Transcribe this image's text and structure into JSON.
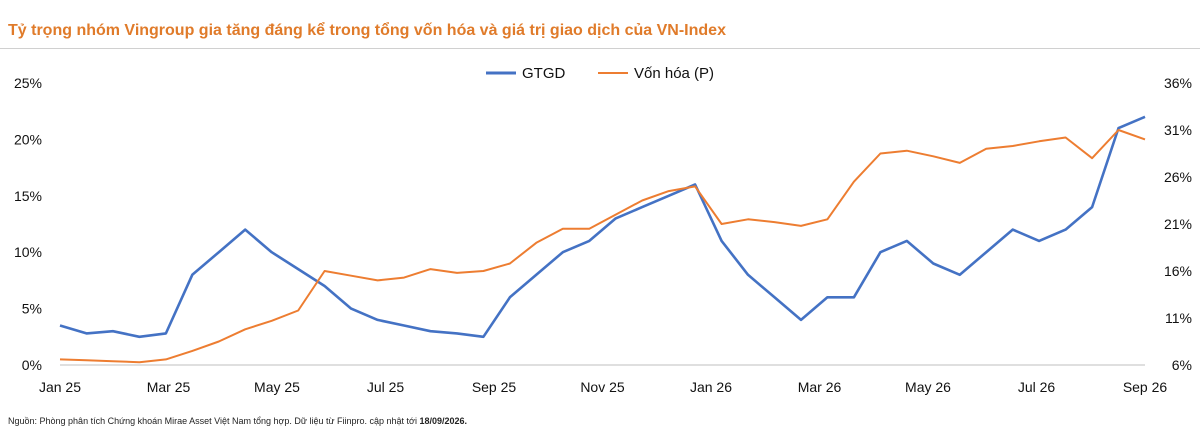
{
  "header": {
    "title": "Tỷ trọng nhóm Vingroup gia tăng đáng kể trong tổng vốn hóa và giá trị giao dịch của VN-Index"
  },
  "footer": {
    "source_prefix": "Nguồn: Phòng phân tích Chứng khoán Mirae Asset Việt Nam tổng hợp. Dữ liệu từ Fiinpro. cập nhật tới ",
    "source_date": "18/09/2026."
  },
  "chart_data": {
    "type": "line",
    "title": "",
    "xlabel": "",
    "ylabel": "",
    "x_ticks": [
      "Jan 25",
      "Mar 25",
      "May 25",
      "Jul 25",
      "Sep 25",
      "Nov 25",
      "Jan 26",
      "Mar 26",
      "May 26",
      "Jul 26",
      "Sep 26"
    ],
    "y_left": {
      "ticks": [
        "0%",
        "5%",
        "10%",
        "15%",
        "20%",
        "25%"
      ],
      "range": [
        0,
        25
      ],
      "unit": "%"
    },
    "y_right": {
      "ticks": [
        "6%",
        "11%",
        "16%",
        "21%",
        "26%",
        "31%",
        "36%"
      ],
      "range": [
        6,
        36
      ],
      "unit": "%"
    },
    "legend_position": "top-center",
    "grid": false,
    "series": [
      {
        "name": "GTGD",
        "axis": "left",
        "color": "#4472C4",
        "points": [
          [
            "Jan 25",
            3.5
          ],
          [
            "Jan 25 (mid)",
            2.8
          ],
          [
            "Feb 25",
            3.0
          ],
          [
            "Feb 25 (mid)",
            2.5
          ],
          [
            "Mar 25",
            2.8
          ],
          [
            "Mar 25 (mid)",
            8.0
          ],
          [
            "Apr 25",
            10.0
          ],
          [
            "Apr 25 (mid)",
            12.0
          ],
          [
            "May 25",
            10.0
          ],
          [
            "May 25 (mid)",
            8.5
          ],
          [
            "Jun 25",
            7.0
          ],
          [
            "Jun 25 (mid)",
            5.0
          ],
          [
            "Jul 25",
            4.0
          ],
          [
            "Jul 25 (mid)",
            3.5
          ],
          [
            "Aug 25",
            3.0
          ],
          [
            "Aug 25 (mid)",
            2.8
          ],
          [
            "Sep 25",
            2.5
          ],
          [
            "Sep 25 (mid)",
            6.0
          ],
          [
            "Oct 25",
            8.0
          ],
          [
            "Oct 25 (mid)",
            10.0
          ],
          [
            "Nov 25",
            11.0
          ],
          [
            "Nov 25 (mid)",
            13.0
          ],
          [
            "Dec 25",
            14.0
          ],
          [
            "Dec 25 (mid)",
            15.0
          ],
          [
            "Jan 26",
            16.0
          ],
          [
            "Jan 26 (mid)",
            11.0
          ],
          [
            "Feb 26",
            8.0
          ],
          [
            "Feb 26 (mid)",
            6.0
          ],
          [
            "Mar 26",
            4.0
          ],
          [
            "Mar 26 (mid)",
            6.0
          ],
          [
            "Apr 26",
            6.0
          ],
          [
            "Apr 26 (mid)",
            10.0
          ],
          [
            "May 26",
            11.0
          ],
          [
            "May 26 (mid)",
            9.0
          ],
          [
            "Jun 26",
            8.0
          ],
          [
            "Jun 26 (mid)",
            10.0
          ],
          [
            "Jul 26",
            12.0
          ],
          [
            "Jul 26 (mid)",
            11.0
          ],
          [
            "Aug 26",
            12.0
          ],
          [
            "Aug 26 (mid)",
            14.0
          ],
          [
            "Sep 26",
            21.0
          ],
          [
            "Sep 26 (end)",
            22.0
          ]
        ]
      },
      {
        "name": "Vốn hóa (P)",
        "axis": "right",
        "color": "#ED7D31",
        "points": [
          [
            "Jan 25",
            6.6
          ],
          [
            "Jan 25 (mid)",
            6.5
          ],
          [
            "Feb 25",
            6.4
          ],
          [
            "Feb 25 (mid)",
            6.3
          ],
          [
            "Mar 25",
            6.6
          ],
          [
            "Mar 25 (mid)",
            7.5
          ],
          [
            "Apr 25",
            8.5
          ],
          [
            "Apr 25 (mid)",
            9.8
          ],
          [
            "May 25",
            10.7
          ],
          [
            "May 25 (mid)",
            11.8
          ],
          [
            "Jun 25",
            16.0
          ],
          [
            "Jun 25 (mid)",
            15.5
          ],
          [
            "Jul 25",
            15.0
          ],
          [
            "Jul 25 (mid)",
            15.3
          ],
          [
            "Aug 25",
            16.2
          ],
          [
            "Aug 25 (mid)",
            15.8
          ],
          [
            "Sep 25",
            16.0
          ],
          [
            "Sep 25 (mid)",
            16.8
          ],
          [
            "Oct 25",
            19.0
          ],
          [
            "Oct 25 (mid)",
            20.5
          ],
          [
            "Nov 25",
            20.5
          ],
          [
            "Nov 25 (mid)",
            22.0
          ],
          [
            "Dec 25",
            23.5
          ],
          [
            "Dec 25 (mid)",
            24.5
          ],
          [
            "Jan 26",
            25.0
          ],
          [
            "Jan 26 (mid)",
            21.0
          ],
          [
            "Feb 26",
            21.5
          ],
          [
            "Feb 26 (mid)",
            21.2
          ],
          [
            "Mar 26",
            20.8
          ],
          [
            "Mar 26 (mid)",
            21.5
          ],
          [
            "Apr 26",
            25.5
          ],
          [
            "Apr 26 (mid)",
            28.5
          ],
          [
            "May 26",
            28.8
          ],
          [
            "May 26 (mid)",
            28.2
          ],
          [
            "Jun 26",
            27.5
          ],
          [
            "Jun 26 (mid)",
            29.0
          ],
          [
            "Jul 26",
            29.3
          ],
          [
            "Jul 26 (mid)",
            29.8
          ],
          [
            "Aug 26",
            30.2
          ],
          [
            "Aug 26 (mid)",
            28.0
          ],
          [
            "Sep 26",
            31.0
          ],
          [
            "Sep 26 (end)",
            30.0
          ]
        ]
      }
    ]
  }
}
